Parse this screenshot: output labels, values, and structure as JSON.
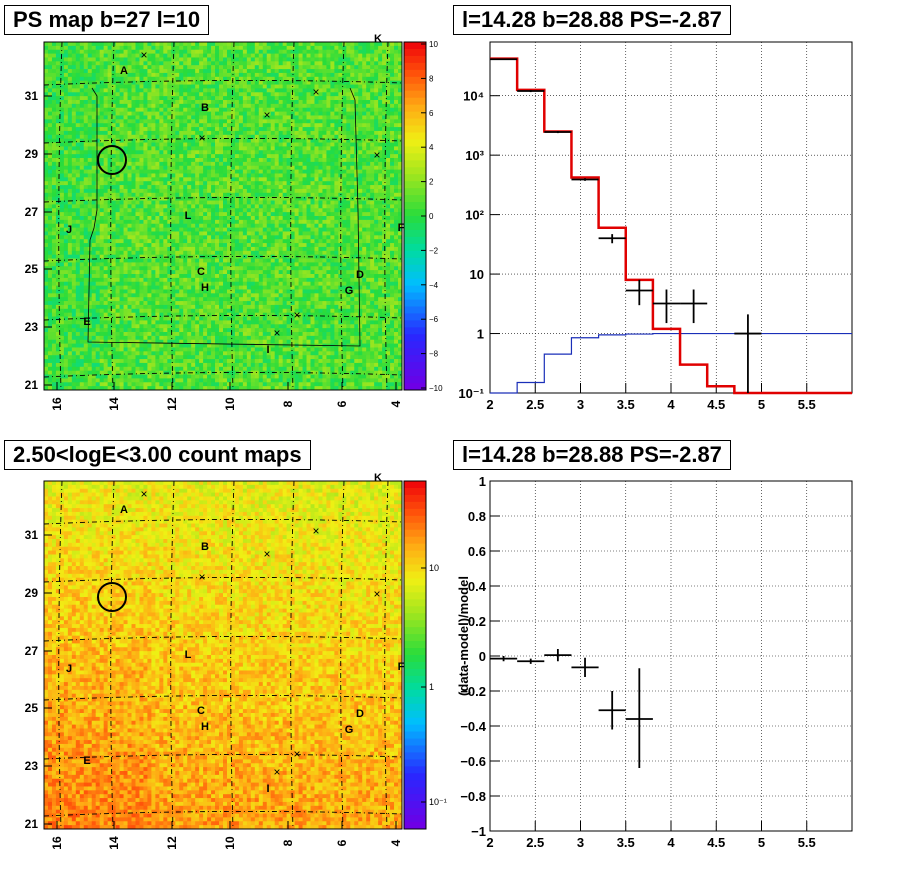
{
  "chart_data": [
    {
      "type": "heatmap",
      "title": "PS map b=27 l=10",
      "x_ticks": [
        "16",
        "14",
        "12",
        "10",
        "8",
        "6",
        "4"
      ],
      "y_ticks": [
        "21",
        "23",
        "25",
        "27",
        "29",
        "31"
      ],
      "colorbar": {
        "scale": "linear",
        "range": [
          -10,
          10
        ],
        "ticks": [
          "10",
          "8",
          "6",
          "4",
          "2",
          "0",
          "−2",
          "−4",
          "−6",
          "−8",
          "−10"
        ]
      },
      "source_labels": [
        {
          "text": "A",
          "l": 14.3,
          "b": 32.1
        },
        {
          "text": "B",
          "l": 11.0,
          "b": 30.5
        },
        {
          "text": "L",
          "l": 11.7,
          "b": 26.8
        },
        {
          "text": "J",
          "l": 15.9,
          "b": 26.4
        },
        {
          "text": "C",
          "l": 10.9,
          "b": 25.0
        },
        {
          "text": "H",
          "l": 10.8,
          "b": 24.5
        },
        {
          "text": "D",
          "l": 5.3,
          "b": 24.8
        },
        {
          "text": "G",
          "l": 5.7,
          "b": 24.3
        },
        {
          "text": "E",
          "l": 15.0,
          "b": 23.2
        },
        {
          "text": "I",
          "l": 8.8,
          "b": 22.1
        },
        {
          "text": "K",
          "l": 4.5,
          "b": 33.5
        },
        {
          "text": "F",
          "l": 3.7,
          "b": 26.5
        }
      ]
    },
    {
      "type": "line",
      "title": "l=14.28 b=28.88 PS=-2.87",
      "yscale": "log",
      "xlim": [
        2,
        6
      ],
      "ylim": [
        0.1,
        80000
      ],
      "x_ticks": [
        "2",
        "2.5",
        "3",
        "3.5",
        "4",
        "4.5",
        "5",
        "5.5"
      ],
      "y_ticks": [
        "10⁻¹",
        "1",
        "10",
        "10²",
        "10³",
        "10⁴"
      ],
      "grid": true,
      "model_steps": {
        "edges": [
          2,
          2.3,
          2.6,
          2.9,
          3.2,
          3.5,
          3.8,
          4.1,
          4.4,
          4.7,
          5.0,
          5.3,
          5.6,
          6.0
        ],
        "values": [
          42000,
          12500,
          2500,
          420,
          60,
          8,
          1.2,
          0.3,
          0.13,
          0.1,
          0.1,
          0.1,
          0.1
        ]
      },
      "background_steps": {
        "edges": [
          2,
          2.3,
          2.6,
          2.9,
          3.2,
          3.5,
          3.8,
          4.1,
          4.4,
          4.7,
          5.0,
          5.3,
          5.6,
          6.0
        ],
        "values": [
          0.1,
          0.15,
          0.45,
          0.85,
          0.95,
          0.98,
          1.0,
          1.0,
          1.0,
          1.0,
          1.0,
          1.0,
          1.0
        ]
      },
      "data_points": [
        {
          "x": 2.15,
          "y": 41000,
          "xerr": 0.15,
          "ylo": 40000,
          "yhi": 42000
        },
        {
          "x": 2.45,
          "y": 12000,
          "xerr": 0.15,
          "ylo": 11500,
          "yhi": 12500
        },
        {
          "x": 2.75,
          "y": 2450,
          "xerr": 0.15,
          "ylo": 2350,
          "yhi": 2550
        },
        {
          "x": 3.05,
          "y": 390,
          "xerr": 0.15,
          "ylo": 370,
          "yhi": 410
        },
        {
          "x": 3.35,
          "y": 40,
          "xerr": 0.15,
          "ylo": 33,
          "yhi": 47
        },
        {
          "x": 3.65,
          "y": 5.3,
          "xerr": 0.15,
          "ylo": 3.0,
          "yhi": 8.0
        },
        {
          "x": 3.95,
          "y": 3.2,
          "xerr": 0.15,
          "ylo": 1.5,
          "yhi": 5.5
        },
        {
          "x": 4.25,
          "y": 3.2,
          "xerr": 0.15,
          "ylo": 1.5,
          "yhi": 5.5
        },
        {
          "x": 4.85,
          "y": 1.0,
          "xerr": 0.15,
          "ylo": 0.1,
          "yhi": 2.1
        }
      ]
    },
    {
      "type": "heatmap",
      "title": "2.50<logE<3.00 count maps",
      "x_ticks": [
        "16",
        "14",
        "12",
        "10",
        "8",
        "6",
        "4"
      ],
      "y_ticks": [
        "21",
        "23",
        "25",
        "27",
        "29",
        "31"
      ],
      "colorbar": {
        "scale": "log",
        "range": [
          0.05,
          30
        ],
        "ticks": [
          "10",
          "1",
          "10⁻¹"
        ]
      }
    },
    {
      "type": "scatter",
      "title": "l=14.28 b=28.88 PS=-2.87",
      "ylabel": "(data-model)/model",
      "xlim": [
        2,
        6
      ],
      "ylim": [
        -1,
        1
      ],
      "x_ticks": [
        "2",
        "2.5",
        "3",
        "3.5",
        "4",
        "4.5",
        "5",
        "5.5"
      ],
      "y_ticks": [
        "−1",
        "−0.8",
        "−0.6",
        "−0.4",
        "−0.2",
        "0",
        "0.2",
        "0.4",
        "0.6",
        "0.8",
        "1"
      ],
      "grid": true,
      "data_points": [
        {
          "x": 2.15,
          "y": -0.015,
          "xerr": 0.15,
          "ylo": -0.03,
          "yhi": 0.0
        },
        {
          "x": 2.45,
          "y": -0.03,
          "xerr": 0.15,
          "ylo": -0.045,
          "yhi": -0.015
        },
        {
          "x": 2.75,
          "y": 0.005,
          "xerr": 0.15,
          "ylo": -0.03,
          "yhi": 0.04
        },
        {
          "x": 3.05,
          "y": -0.065,
          "xerr": 0.15,
          "ylo": -0.12,
          "yhi": -0.01
        },
        {
          "x": 3.35,
          "y": -0.31,
          "xerr": 0.15,
          "ylo": -0.42,
          "yhi": -0.2
        },
        {
          "x": 3.65,
          "y": -0.36,
          "xerr": 0.15,
          "ylo": -0.64,
          "yhi": -0.07
        }
      ]
    }
  ]
}
